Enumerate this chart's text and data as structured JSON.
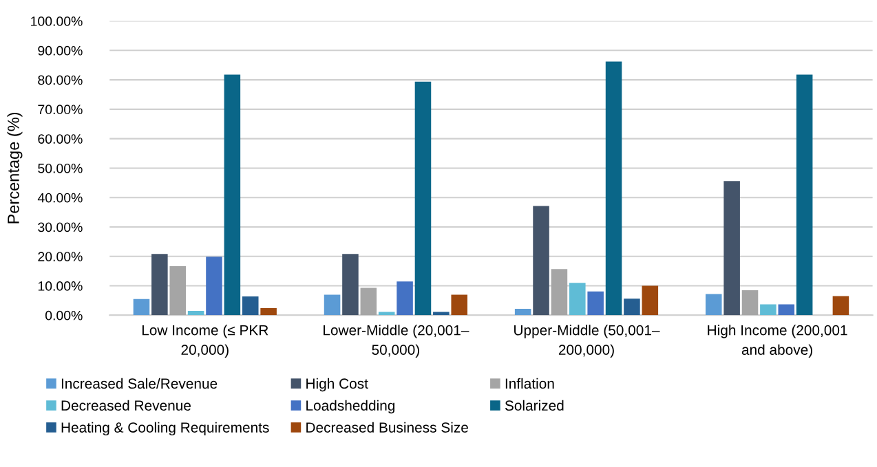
{
  "chart_data": {
    "type": "bar",
    "ylabel": "Percentage (%)",
    "categories": [
      "Low Income (≤ PKR\n20,000)",
      "Lower-Middle (20,001–\n50,000)",
      "Upper-Middle (50,001–\n200,000)",
      "High Income (200,001\nand above)"
    ],
    "series": [
      {
        "name": "Increased Sale/Revenue",
        "color": "#5b9bd5",
        "values": [
          5.5,
          7.0,
          2.2,
          7.2
        ]
      },
      {
        "name": "High Cost",
        "color": "#44546a",
        "values": [
          20.8,
          20.8,
          37.1,
          45.6
        ]
      },
      {
        "name": "Inflation",
        "color": "#a5a5a5",
        "values": [
          16.7,
          9.3,
          15.7,
          8.5
        ]
      },
      {
        "name": "Decreased Revenue",
        "color": "#5fbcd6",
        "values": [
          1.5,
          1.1,
          11.0,
          3.7
        ]
      },
      {
        "name": "Loadshedding",
        "color": "#4472c4",
        "values": [
          19.9,
          11.5,
          8.1,
          3.7
        ]
      },
      {
        "name": "Solarized",
        "color": "#0a6688",
        "values": [
          81.8,
          79.4,
          86.2,
          81.8
        ]
      },
      {
        "name": "Heating & Cooling Requirements",
        "color": "#255e91",
        "values": [
          6.4,
          1.1,
          5.6,
          0
        ]
      },
      {
        "name": "Decreased Business Size",
        "color": "#9e480e",
        "values": [
          2.4,
          7.0,
          10.0,
          6.5
        ]
      }
    ],
    "ylim": [
      0,
      100
    ],
    "yticks": [
      {
        "value": 0,
        "label": "0.00%"
      },
      {
        "value": 10,
        "label": "10.00%"
      },
      {
        "value": 20,
        "label": "20.00%"
      },
      {
        "value": 30,
        "label": "30.00%"
      },
      {
        "value": 40,
        "label": "40.00%"
      },
      {
        "value": 50,
        "label": "50.00%"
      },
      {
        "value": 60,
        "label": "60.00%"
      },
      {
        "value": 70,
        "label": "70.00%"
      },
      {
        "value": 80,
        "label": "80.00%"
      },
      {
        "value": 90,
        "label": "90.00%"
      },
      {
        "value": 100,
        "label": "100.00%"
      }
    ],
    "grid": "y",
    "legend": "bottom"
  }
}
